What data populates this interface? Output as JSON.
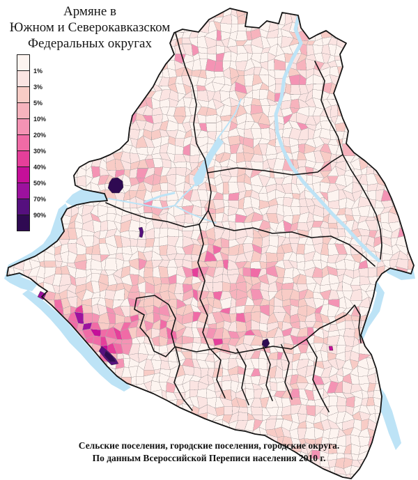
{
  "title": {
    "line1": "Армяне в",
    "line2": "Южном и Северокавказском",
    "line3": "Федеральных округах"
  },
  "legend": {
    "labels": [
      "1%",
      "3%",
      "5%",
      "10%",
      "20%",
      "30%",
      "40%",
      "50%",
      "70%",
      "90%"
    ],
    "colors": [
      "#fdf4f0",
      "#fbe4e2",
      "#f8ccc6",
      "#f7b3bd",
      "#f493b4",
      "#f06ba6",
      "#e53f9a",
      "#c50f99",
      "#9c119e",
      "#55107e",
      "#2f0a52"
    ]
  },
  "footer": {
    "line1": "Сельские поселения, городские поселения, городские округа.",
    "line2": "По данным Всероссийской Переписи населения 2010 г."
  },
  "map": {
    "water_color": "#bde3f6",
    "border_color": "#141414",
    "cell_stroke": "#b2a9a9",
    "base_fill": "#fcf2ee"
  }
}
